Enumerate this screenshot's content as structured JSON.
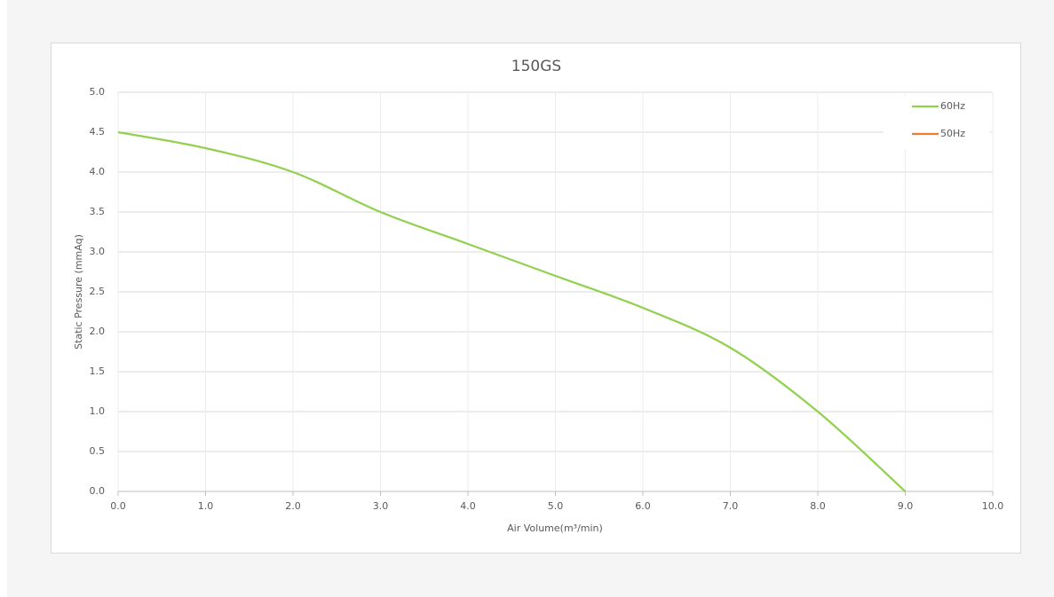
{
  "chart_data": {
    "type": "line",
    "title": "150GS",
    "x_label": "Air Volume(m³/min)",
    "y_label": "Static Pressure (mmAq)",
    "x": [
      0,
      1,
      2,
      3,
      4,
      5,
      6,
      7,
      8,
      9
    ],
    "series": [
      {
        "name": "60Hz",
        "color": "#92d050",
        "values": [
          4.5,
          4.3,
          4.0,
          3.5,
          3.1,
          2.7,
          2.3,
          1.8,
          1.0,
          0.0
        ]
      },
      {
        "name": "50Hz",
        "color": "#ed7d31",
        "values": [
          null,
          null,
          null,
          null,
          null,
          null,
          null,
          null,
          null,
          null
        ]
      }
    ],
    "xlim": [
      0,
      10
    ],
    "ylim": [
      0,
      5
    ],
    "xticks": [
      {
        "value": 0,
        "label": "0.0"
      },
      {
        "value": 1,
        "label": "1.0"
      },
      {
        "value": 2,
        "label": "2.0"
      },
      {
        "value": 3,
        "label": "3.0"
      },
      {
        "value": 4,
        "label": "4.0"
      },
      {
        "value": 5,
        "label": "5.0"
      },
      {
        "value": 6,
        "label": "6.0"
      },
      {
        "value": 7,
        "label": "7.0"
      },
      {
        "value": 8,
        "label": "8.0"
      },
      {
        "value": 9,
        "label": "9.0"
      },
      {
        "value": 10,
        "label": "10.0"
      }
    ],
    "yticks": [
      {
        "value": 0,
        "label": "0.0"
      },
      {
        "value": 0.5,
        "label": "0.5"
      },
      {
        "value": 1,
        "label": "1.0"
      },
      {
        "value": 1.5,
        "label": "1.5"
      },
      {
        "value": 2,
        "label": "2.0"
      },
      {
        "value": 2.5,
        "label": "2.5"
      },
      {
        "value": 3,
        "label": "3.0"
      },
      {
        "value": 3.5,
        "label": "3.5"
      },
      {
        "value": 4,
        "label": "4.0"
      },
      {
        "value": 4.5,
        "label": "4.5"
      },
      {
        "value": 5,
        "label": "5.0"
      }
    ],
    "grid": true,
    "legend": "top-right"
  }
}
